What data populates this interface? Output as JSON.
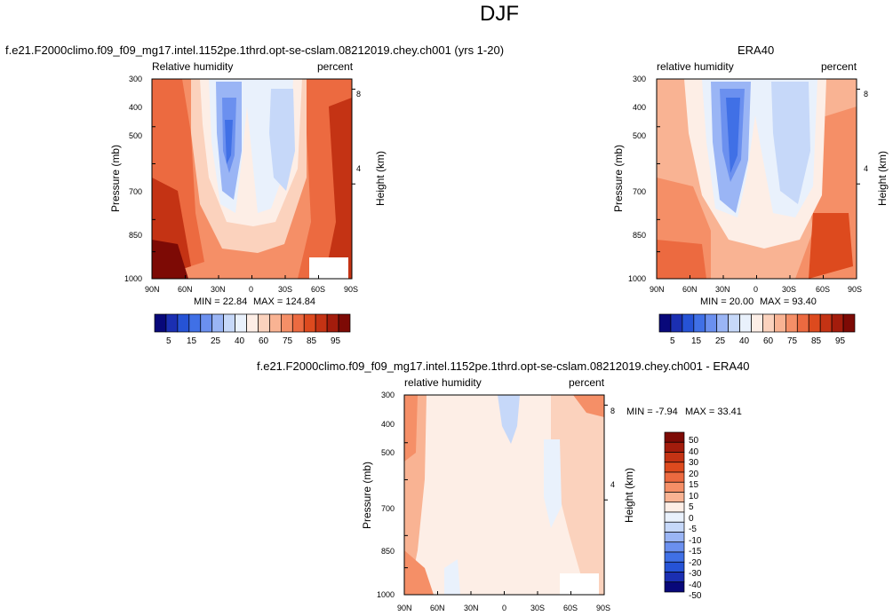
{
  "figure_title": "DJF",
  "chart_data": [
    {
      "type": "heatmap",
      "title": "f.e21.F2000climo.f09_f09_mg17.intel.1152pe.1thrd.opt-se-cslam.08212019.chey.ch001 (yrs 1-20)",
      "left_label": "Relative humidity",
      "right_label": "percent",
      "xlabel": "",
      "ylabel": "Pressure (mb)",
      "ylabel_right": "Height (km)",
      "x_tick_labels": [
        "90N",
        "60N",
        "30N",
        "0",
        "30S",
        "60S",
        "90S"
      ],
      "y_tick_labels": [
        "300",
        "400",
        "500",
        "700",
        "850",
        "1000"
      ],
      "y_tick_values": [
        300,
        400,
        500,
        700,
        850,
        1000
      ],
      "height_tick_labels": [
        "8",
        "4"
      ],
      "height_tick_values": [
        8,
        4
      ],
      "xlim": [
        90,
        -90
      ],
      "ylim": [
        1000,
        300
      ],
      "min_label": "MIN =  22.84",
      "max_label": "MAX = 124.84",
      "min": 22.84,
      "max": 124.84,
      "colorbar_labels": [
        "5",
        "15",
        "25",
        "40",
        "60",
        "75",
        "85",
        "95"
      ]
    },
    {
      "type": "heatmap",
      "title": "ERA40",
      "left_label": "relative humidity",
      "right_label": "percent",
      "xlabel": "",
      "ylabel": "Pressure (mb)",
      "ylabel_right": "Height (km)",
      "x_tick_labels": [
        "90N",
        "60N",
        "30N",
        "0",
        "30S",
        "60S",
        "90S"
      ],
      "y_tick_labels": [
        "300",
        "400",
        "500",
        "700",
        "850",
        "1000"
      ],
      "y_tick_values": [
        300,
        400,
        500,
        700,
        850,
        1000
      ],
      "height_tick_labels": [
        "8",
        "4"
      ],
      "height_tick_values": [
        8,
        4
      ],
      "xlim": [
        90,
        -90
      ],
      "ylim": [
        1000,
        300
      ],
      "min_label": "MIN =  20.00",
      "max_label": "MAX =  93.40",
      "min": 20.0,
      "max": 93.4,
      "colorbar_labels": [
        "5",
        "15",
        "25",
        "40",
        "60",
        "75",
        "85",
        "95"
      ]
    },
    {
      "type": "heatmap",
      "title": "f.e21.F2000climo.f09_f09_mg17.intel.1152pe.1thrd.opt-se-cslam.08212019.chey.ch001 - ERA40",
      "left_label": "relative humidity",
      "right_label": "percent",
      "xlabel": "",
      "ylabel": "Pressure (mb)",
      "ylabel_right": "Height (km)",
      "x_tick_labels": [
        "90N",
        "60N",
        "30N",
        "0",
        "30S",
        "60S",
        "90S"
      ],
      "y_tick_labels": [
        "300",
        "400",
        "500",
        "700",
        "850",
        "1000"
      ],
      "y_tick_values": [
        300,
        400,
        500,
        700,
        850,
        1000
      ],
      "height_tick_labels": [
        "8",
        "4"
      ],
      "height_tick_values": [
        8,
        4
      ],
      "xlim": [
        90,
        -90
      ],
      "ylim": [
        1000,
        300
      ],
      "min_label": "MIN = -7.94",
      "max_label": "MAX = 33.41",
      "min": -7.94,
      "max": 33.41,
      "colorbar_labels": [
        "50",
        "40",
        "30",
        "20",
        "15",
        "10",
        "5",
        "0",
        "-5",
        "-10",
        "-15",
        "-20",
        "-30",
        "-40",
        "-50"
      ]
    }
  ],
  "colors": {
    "abs_scale": [
      "#08087a",
      "#1b2fb2",
      "#2653d6",
      "#4070e6",
      "#6b90ef",
      "#9ab5f5",
      "#c6d8f9",
      "#e9f1fc",
      "#fdeee6",
      "#fbd2bd",
      "#f9b393",
      "#f58f67",
      "#ec6a40",
      "#dd4a1e",
      "#c43314",
      "#a31c0c",
      "#7d0a05"
    ],
    "diff_scale": [
      "#7d0a05",
      "#a31c0c",
      "#c43314",
      "#dd4a1e",
      "#ec6a40",
      "#f58f67",
      "#f9b393",
      "#fdeee6",
      "#e9f1fc",
      "#c6d8f9",
      "#9ab5f5",
      "#6b90ef",
      "#4070e6",
      "#2653d6",
      "#1b2fb2",
      "#08087a"
    ]
  }
}
